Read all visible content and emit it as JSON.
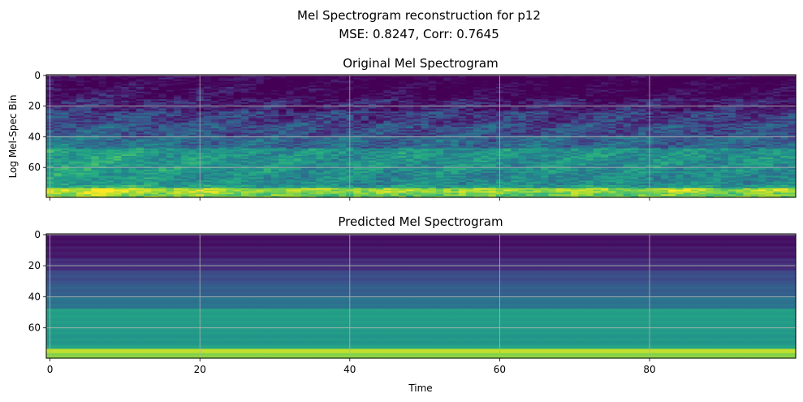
{
  "figure": {
    "title_line1": "Mel Spectrogram reconstruction for p12",
    "title_line2": "MSE: 0.8247, Corr: 0.7645"
  },
  "chart_data": [
    {
      "type": "heatmap",
      "title": "Original Mel Spectrogram",
      "xlabel": "",
      "ylabel": "Log Mel-Spec Bin",
      "xlim": [
        -0.5,
        99.5
      ],
      "ylim": [
        79.5,
        -0.5
      ],
      "xticks": [
        0,
        20,
        40,
        60,
        80
      ],
      "xtick_labels_shown": false,
      "yticks": [
        0,
        20,
        40,
        60
      ],
      "grid": true,
      "colormap": "viridis",
      "shape": [
        80,
        100
      ],
      "description_values": "bins 0-20 low (dark purple), 20-45 mid (blue), 45-70 teal/green, 70-80 high (yellow-green), stronger at early times"
    },
    {
      "type": "heatmap",
      "title": "Predicted Mel Spectrogram",
      "xlabel": "Time",
      "ylabel": "",
      "xlim": [
        -0.5,
        99.5
      ],
      "ylim": [
        79.5,
        -0.5
      ],
      "xticks": [
        0,
        20,
        40,
        60,
        80
      ],
      "yticks": [
        0,
        20,
        40,
        60
      ],
      "grid": true,
      "colormap": "viridis",
      "shape": [
        80,
        100
      ],
      "description_values": "smooth horizontal bands constant over time: purple top, blue, teal-green middle, bright yellow near bin 75"
    }
  ]
}
